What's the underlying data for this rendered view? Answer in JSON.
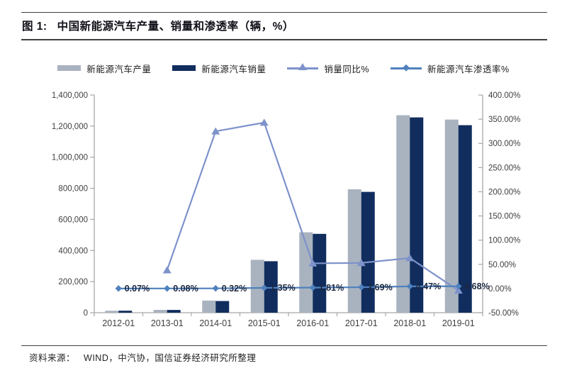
{
  "title": {
    "figure_label": "图 1:",
    "text": "中国新能源汽车产量、销量和渗透率（辆，%）"
  },
  "footer": {
    "source_label": "资料来源：",
    "source_text": "WIND，中汽协，国信证券经济研究所整理"
  },
  "colors": {
    "production_bar": "#a9b3bf",
    "sales_bar": "#102d5e",
    "yoy_line": "#7e92cb",
    "penetration_line": "#4f81bd",
    "axis": "#a8a8a8",
    "tick_text": "#3f3f3f",
    "data_label_text": "#1b2740",
    "rule": "#3f3f3f"
  },
  "chart_data": {
    "type": "bar",
    "subtype": "combo-bar-line",
    "title": "图 1: 中国新能源汽车产量、销量和渗透率（辆，%）",
    "categories": [
      "2012-01",
      "2013-01",
      "2014-01",
      "2015-01",
      "2016-01",
      "2017-01",
      "2018-01",
      "2019-01"
    ],
    "series": [
      {
        "key": "production",
        "name": "新能源汽车产量",
        "type": "bar",
        "axis": "left",
        "color": "#a9b3bf",
        "values": [
          12500,
          18000,
          78000,
          340000,
          517000,
          794000,
          1270000,
          1242000
        ]
      },
      {
        "key": "sales",
        "name": "新能源汽车销量",
        "type": "bar",
        "axis": "left",
        "color": "#102d5e",
        "values": [
          12800,
          17600,
          75000,
          331000,
          507000,
          777000,
          1256000,
          1206000
        ]
      },
      {
        "key": "yoy",
        "name": "销量同比%",
        "type": "line",
        "axis": "right",
        "color": "#7e92cb",
        "marker": "triangle",
        "values": [
          null,
          38,
          325,
          343,
          52,
          53,
          63,
          -4
        ]
      },
      {
        "key": "penetration",
        "name": "新能源汽车渗透率%",
        "type": "line",
        "axis": "right",
        "color": "#4f81bd",
        "marker": "diamond",
        "values": [
          0.07,
          0.08,
          0.32,
          1.35,
          1.81,
          2.69,
          4.47,
          4.68
        ],
        "point_labels": [
          "0.07%",
          "0.08%",
          "0.32%",
          "1.35%",
          "1.81%",
          "2.69%",
          "4.47%",
          "4.68%"
        ]
      }
    ],
    "left_axis": {
      "min": 0,
      "max": 1400000,
      "tick_values": [
        0,
        200000,
        400000,
        600000,
        800000,
        1000000,
        1200000,
        1400000
      ],
      "tick_labels": [
        "0",
        "200,000",
        "400,000",
        "600,000",
        "800,000",
        "1,000,000",
        "1,200,000",
        "1,400,000"
      ]
    },
    "right_axis": {
      "min": -50,
      "max": 400,
      "tick_values": [
        -50,
        0,
        50,
        100,
        150,
        200,
        250,
        300,
        350,
        400
      ],
      "tick_labels": [
        "-50.00%",
        "0.00%",
        "50.00%",
        "100.00%",
        "150.00%",
        "200.00%",
        "250.00%",
        "300.00%",
        "350.00%",
        "400.00%"
      ]
    },
    "grid": false,
    "legend_position": "top"
  }
}
